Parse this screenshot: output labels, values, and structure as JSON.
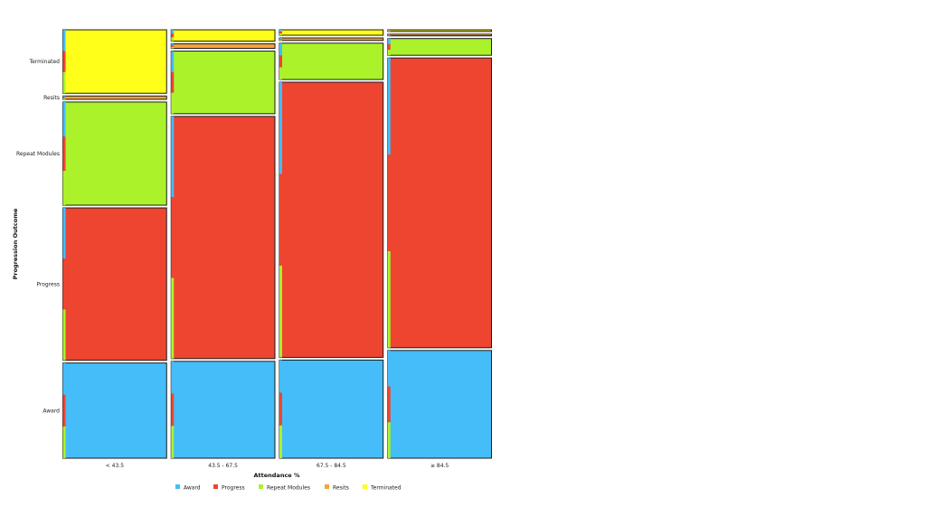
{
  "chart_data": {
    "type": "mosaic",
    "xlabel": "Attendance %",
    "ylabel": "Progression Outcome",
    "categories": [
      "< 43.5",
      "43.5 - 67.5",
      "67.5 - 84.5",
      "≥ 84.5"
    ],
    "column_weights": [
      1,
      1,
      1,
      1
    ],
    "outcomes": [
      "Award",
      "Progress",
      "Repeat Modules",
      "Resits",
      "Terminated"
    ],
    "colors": {
      "Award": "#45BDF8",
      "Progress": "#EE4530",
      "Repeat Modules": "#ABF22B",
      "Resits": "#F3A43A",
      "Terminated": "#FFFF1A"
    },
    "proportions": [
      {
        "category": "< 43.5",
        "values": [
          0.228,
          0.365,
          0.247,
          0.008,
          0.152
        ]
      },
      {
        "category": "43.5 - 67.5",
        "values": [
          0.232,
          0.58,
          0.15,
          0.011,
          0.027
        ]
      },
      {
        "category": "67.5 - 84.5",
        "values": [
          0.235,
          0.659,
          0.087,
          0.006,
          0.013
        ]
      },
      {
        "category": "≥ 84.5",
        "values": [
          0.258,
          0.694,
          0.04,
          0.004,
          0.004
        ]
      }
    ],
    "y_tick_labels": [
      "Award",
      "Progress",
      "Repeat Modules",
      "Resits",
      "Terminated"
    ],
    "legend": {
      "position": "bottom",
      "entries": [
        "Award",
        "Progress",
        "Repeat Modules",
        "Resits",
        "Terminated"
      ]
    },
    "grid": false
  }
}
